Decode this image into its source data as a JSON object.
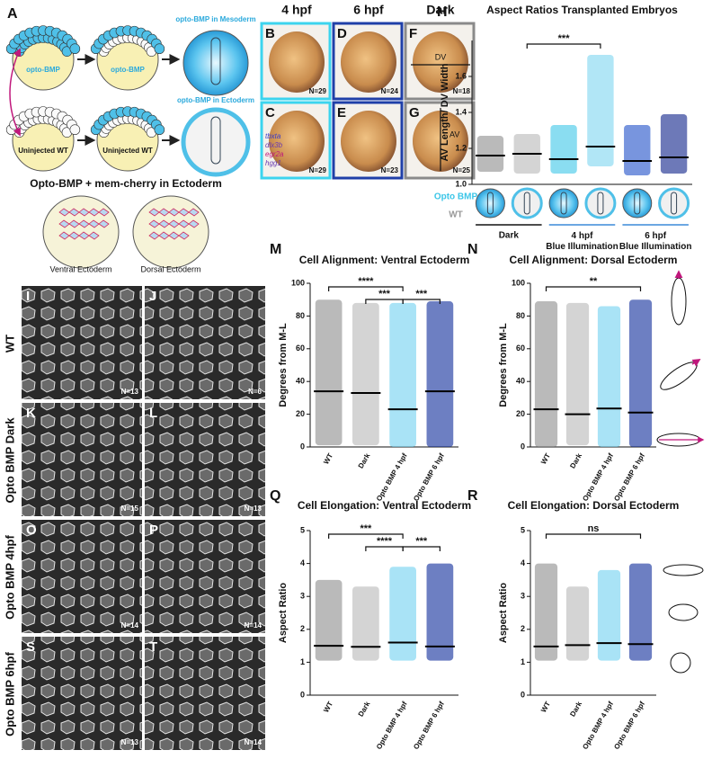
{
  "panel_labels": [
    "A",
    "H",
    "M",
    "N",
    "Q",
    "R"
  ],
  "schematic": {
    "top_yolk": [
      "opto-BMP",
      "opto-BMP"
    ],
    "top_result": "opto-BMP in Mesoderm",
    "bottom_yolk": [
      "Uninjected WT",
      "Uninjected WT"
    ],
    "bottom_result": "opto-BMP in Ectoderm",
    "heading": "Opto-BMP + mem-cherry in Ectoderm",
    "embryo_labels": [
      "Ventral Ectoderm",
      "Dorsal Ectoderm"
    ]
  },
  "embryo_images": {
    "column_headers": [
      "4 hpf",
      "6 hpf",
      "Dark"
    ],
    "panels": [
      {
        "letter": "B",
        "n": "N=29"
      },
      {
        "letter": "D",
        "n": "N=24"
      },
      {
        "letter": "F",
        "n": "N=18"
      },
      {
        "letter": "C",
        "n": "N=29"
      },
      {
        "letter": "E",
        "n": "N=23"
      },
      {
        "letter": "G",
        "n": "N=25"
      }
    ],
    "axis_labels": [
      "DV",
      "AV"
    ],
    "genes": [
      "tbxta",
      "dlx3b",
      "egr2a",
      "hgg1"
    ]
  },
  "micrographs": {
    "row_labels": [
      "WT",
      "Opto BMP Dark",
      "Opto BMP 4hpf",
      "Opto BMP 6hpf"
    ],
    "panels": [
      {
        "letter": "I",
        "n": "N=13"
      },
      {
        "letter": "J",
        "n": "N=6"
      },
      {
        "letter": "K",
        "n": "N=15"
      },
      {
        "letter": "L",
        "n": "N=13"
      },
      {
        "letter": "O",
        "n": "N=14"
      },
      {
        "letter": "P",
        "n": "N=14"
      },
      {
        "letter": "S",
        "n": "N=13"
      },
      {
        "letter": "T",
        "n": "N=14"
      }
    ]
  },
  "chart_data": [
    {
      "type": "strip",
      "title": "Aspect Ratios Transplanted Embryos",
      "ylabel": "AV Length/ DV Width",
      "categories": [
        null,
        null,
        null,
        null,
        null,
        null
      ],
      "colors": [
        "#8c8c8c",
        "#b8b8b8",
        "#3cc6e8",
        "#7dd5f0",
        "#1e4fc8",
        "#0b2088"
      ],
      "medians": [
        1.16,
        1.17,
        1.14,
        1.21,
        1.13,
        1.15
      ],
      "min_values": [
        1.07,
        1.06,
        1.06,
        1.1,
        1.05,
        1.06
      ],
      "max_values": [
        1.27,
        1.28,
        1.33,
        1.72,
        1.33,
        1.39
      ],
      "ylim": [
        1.0,
        1.8
      ],
      "yticks": [
        {
          "value": 1.0,
          "label": "1.0"
        },
        {
          "value": 1.2,
          "label": "1.2"
        },
        {
          "value": 1.4,
          "label": "1.4"
        },
        {
          "value": 1.6,
          "label": "1.6"
        }
      ],
      "annotations": [
        "***"
      ],
      "legend": [
        "Opto BMP",
        "WT"
      ],
      "groups": [
        "Dark",
        "4 hpf Blue Illumination",
        "6 hpf Blue Illumination"
      ]
    },
    {
      "type": "strip",
      "title": "Cell Alignment: Ventral Ectoderm",
      "ylabel": "Degrees from M-L",
      "categories": [
        "WT",
        "Dark",
        "Opto BMP 4 hpf",
        "Opto BMP 6 hpf"
      ],
      "colors": [
        "#8c8c8c",
        "#b8b8b8",
        "#6fd0f0",
        "#0b2a9a"
      ],
      "medians": [
        34,
        33,
        23,
        34
      ],
      "min_values": [
        1,
        1,
        0,
        0
      ],
      "max_values": [
        90,
        88,
        88,
        89
      ],
      "ylim": [
        0,
        100
      ],
      "yticks": [
        0,
        20,
        40,
        60,
        80,
        100
      ],
      "annotations": [
        "****",
        "***",
        "***"
      ]
    },
    {
      "type": "strip",
      "title": "Cell Alignment: Dorsal Ectoderm",
      "ylabel": "Degrees from M-L",
      "categories": [
        "WT",
        "Dark",
        "Opto BMP 4 hpf",
        "Opto BMP 6 hpf"
      ],
      "colors": [
        "#8c8c8c",
        "#b8b8b8",
        "#6fd0f0",
        "#0b2a9a"
      ],
      "medians": [
        23,
        20,
        23.5,
        21
      ],
      "min_values": [
        0,
        1,
        0,
        0
      ],
      "max_values": [
        89,
        88,
        86,
        90
      ],
      "ylim": [
        0,
        100
      ],
      "yticks": [
        0,
        20,
        40,
        60,
        80,
        100
      ],
      "annotations": [
        "**"
      ]
    },
    {
      "type": "strip",
      "title": "Cell Elongation: Ventral Ectoderm",
      "ylabel": "Aspect Ratio",
      "categories": [
        "WT",
        "Dark",
        "Opto BMP 4 hpf",
        "Opto BMP 6 hpf"
      ],
      "colors": [
        "#8c8c8c",
        "#b8b8b8",
        "#6fd0f0",
        "#0b2a9a"
      ],
      "medians": [
        1.5,
        1.47,
        1.6,
        1.48
      ],
      "min_values": [
        1.05,
        1.05,
        1.05,
        1.05
      ],
      "max_values": [
        3.5,
        3.3,
        3.9,
        4.0
      ],
      "ylim": [
        0,
        5
      ],
      "yticks": [
        0,
        1,
        2,
        3,
        4,
        5
      ],
      "annotations": [
        "***",
        "****",
        "***"
      ]
    },
    {
      "type": "strip",
      "title": "Cell Elongation: Dorsal Ectoderm",
      "ylabel": "Aspect Ratio",
      "categories": [
        "WT",
        "Dark",
        "Opto BMP 4 hpf",
        "Opto BMP 6 hpf"
      ],
      "colors": [
        "#8c8c8c",
        "#b8b8b8",
        "#6fd0f0",
        "#0b2a9a"
      ],
      "medians": [
        1.48,
        1.52,
        1.58,
        1.55
      ],
      "min_values": [
        1.05,
        1.05,
        1.05,
        1.05
      ],
      "max_values": [
        4.0,
        3.3,
        3.8,
        4.0
      ],
      "ylim": [
        0,
        5
      ],
      "yticks": [
        0,
        1,
        2,
        3,
        4,
        5
      ],
      "annotations": [
        "ns"
      ]
    }
  ]
}
